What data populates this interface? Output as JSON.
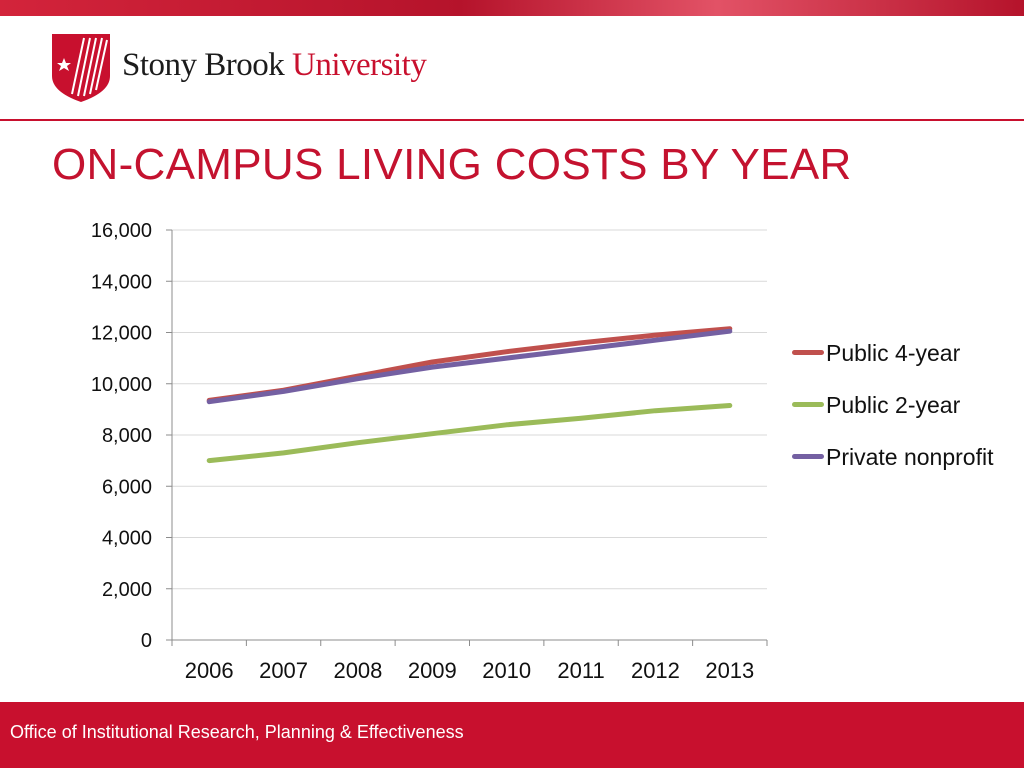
{
  "header": {
    "logo_text_primary": "Stony Brook",
    "logo_text_secondary": "University",
    "brand_color": "#c8102e"
  },
  "slide": {
    "title": "ON-CAMPUS LIVING COSTS BY YEAR"
  },
  "footer": {
    "text": "Office of Institutional Research, Planning & Effectiveness"
  },
  "chart_data": {
    "type": "line",
    "title": "",
    "xlabel": "",
    "ylabel": "",
    "categories": [
      "2006",
      "2007",
      "2008",
      "2009",
      "2010",
      "2011",
      "2012",
      "2013"
    ],
    "ylim": [
      0,
      16000
    ],
    "yticks": [
      "0",
      "2,000",
      "4,000",
      "6,000",
      "8,000",
      "10,000",
      "12,000",
      "14,000",
      "16,000"
    ],
    "ytick_values": [
      0,
      2000,
      4000,
      6000,
      8000,
      10000,
      12000,
      14000,
      16000
    ],
    "grid": true,
    "legend_position": "right",
    "series": [
      {
        "name": "Public 4-year",
        "color": "#c0504d",
        "values": [
          9350,
          9750,
          10300,
          10850,
          11250,
          11600,
          11900,
          12150
        ]
      },
      {
        "name": "Public 2-year",
        "color": "#9bbb59",
        "values": [
          7000,
          7300,
          7700,
          8050,
          8400,
          8650,
          8950,
          9150
        ]
      },
      {
        "name": "Private nonprofit",
        "color": "#7460a2",
        "values": [
          9300,
          9700,
          10200,
          10650,
          11000,
          11350,
          11700,
          12050
        ]
      }
    ]
  }
}
